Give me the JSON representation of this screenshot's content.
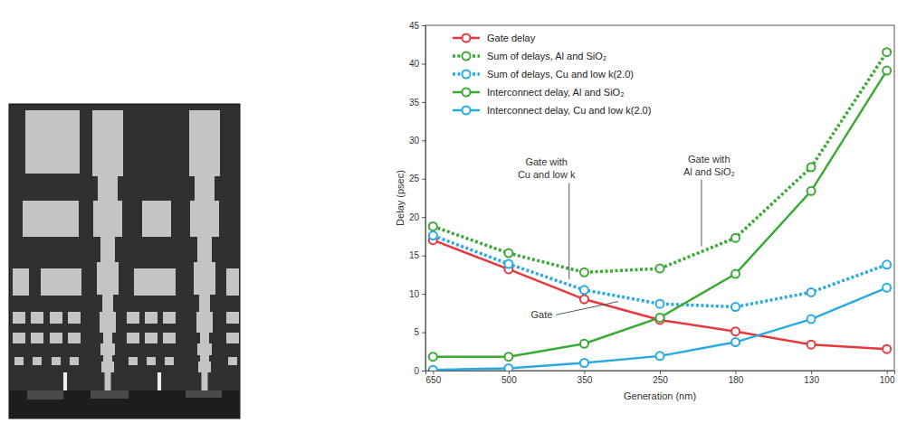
{
  "chart_data": {
    "type": "line",
    "x_label": "Generation (nm)",
    "y_label": "Delay (psec)",
    "categories": [
      "650",
      "500",
      "350",
      "250",
      "180",
      "130",
      "100"
    ],
    "ylim": [
      0,
      45
    ],
    "yticks": [
      0,
      5,
      10,
      15,
      20,
      25,
      30,
      35,
      40,
      45
    ],
    "grid": false,
    "legend": "upper left",
    "marker": "circle",
    "series": [
      {
        "name": "Gate delay",
        "color": "#e8383d",
        "line_style": "solid",
        "values": [
          17,
          13.2,
          9.3,
          6.6,
          5.1,
          3.4,
          2.8
        ]
      },
      {
        "name": "Sum of delays, Al and SiO₂",
        "color": "#3aaa35",
        "line_style": "dotted",
        "values": [
          18.8,
          15.3,
          12.8,
          13.3,
          17.3,
          26.5,
          41.5
        ]
      },
      {
        "name": "Sum of delays, Cu and low k(2.0)",
        "color": "#29abe2",
        "line_style": "dotted",
        "values": [
          17.6,
          13.9,
          10.5,
          8.7,
          8.3,
          10.2,
          13.8
        ]
      },
      {
        "name": "Interconnect delay, Al and SiO₂",
        "color": "#3aaa35",
        "line_style": "solid",
        "values": [
          1.8,
          1.8,
          3.5,
          6.9,
          12.6,
          23.4,
          39.1
        ]
      },
      {
        "name": "Interconnect delay, Cu and low k(2.0)",
        "color": "#29abe2",
        "line_style": "solid",
        "values": [
          0.1,
          0.3,
          1.0,
          1.9,
          3.7,
          6.7,
          10.8
        ]
      }
    ],
    "annotations": [
      "Gate with Cu and low k",
      "Gate with Al and SiO₂",
      "Gate"
    ]
  }
}
